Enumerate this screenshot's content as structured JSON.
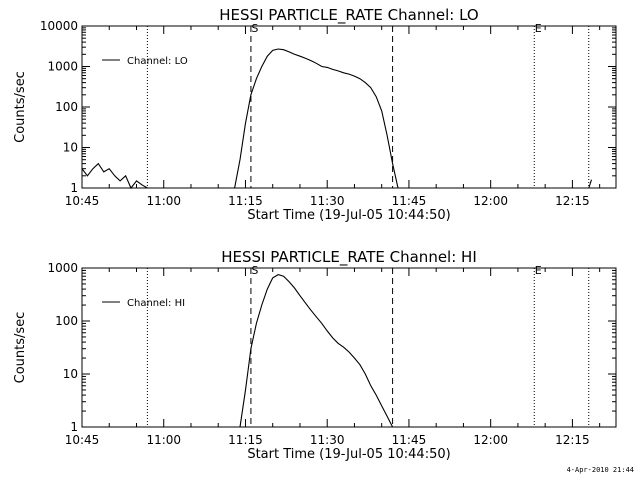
{
  "footer": {
    "timestamp": "4-Apr-2010 21:44"
  },
  "chart_data": [
    {
      "type": "line",
      "title": "HESSI PARTICLE_RATE Channel: LO",
      "xlabel": "Start Time (19-Jul-05 10:44:50)",
      "ylabel": "Counts/sec",
      "y_scale": "log",
      "xlim": [
        "10:45",
        "12:23"
      ],
      "ylim": [
        1,
        10000
      ],
      "x_ticks": [
        "10:45",
        "11:00",
        "11:15",
        "11:30",
        "11:45",
        "12:00",
        "12:15"
      ],
      "y_ticks": [
        "1",
        "10",
        "100",
        "1000",
        "10000"
      ],
      "legend": {
        "position": "top-left",
        "entries": [
          "Channel: LO"
        ]
      },
      "markers": [
        {
          "label": "S",
          "time": "11:16",
          "style": "dashed"
        },
        {
          "label": "",
          "time": "11:42",
          "style": "dashed"
        },
        {
          "label": "E",
          "time": "12:08",
          "style": "dotted"
        }
      ],
      "dotted_lines": [
        "10:57",
        "12:18"
      ],
      "series": [
        {
          "name": "Channel: LO",
          "x": [
            "10:45",
            "10:46",
            "10:47",
            "10:48",
            "10:49",
            "10:50",
            "10:51",
            "10:52",
            "10:53",
            "10:54",
            "10:55",
            "10:56",
            "10:57",
            "11:13",
            "11:14",
            "11:15",
            "11:16",
            "11:17",
            "11:18",
            "11:19",
            "11:20",
            "11:21",
            "11:22",
            "11:23",
            "11:24",
            "11:25",
            "11:26",
            "11:27",
            "11:28",
            "11:29",
            "11:30",
            "11:31",
            "11:32",
            "11:33",
            "11:34",
            "11:35",
            "11:36",
            "11:37",
            "11:38",
            "11:39",
            "11:40",
            "11:41",
            "11:42",
            "11:43",
            "12:18",
            "12:18.5"
          ],
          "y": [
            3,
            2,
            3,
            4,
            2.5,
            3,
            2,
            1.5,
            2,
            1,
            1.5,
            1.2,
            1,
            1,
            5,
            40,
            200,
            500,
            1000,
            1800,
            2500,
            2700,
            2600,
            2300,
            2000,
            1800,
            1600,
            1400,
            1200,
            1000,
            950,
            850,
            780,
            700,
            650,
            580,
            500,
            400,
            300,
            180,
            80,
            20,
            4,
            1,
            1,
            1.6
          ]
        }
      ]
    },
    {
      "type": "line",
      "title": "HESSI PARTICLE_RATE Channel: HI",
      "xlabel": "Start Time (19-Jul-05 10:44:50)",
      "ylabel": "Counts/sec",
      "y_scale": "log",
      "xlim": [
        "10:45",
        "12:23"
      ],
      "ylim": [
        1,
        1000
      ],
      "x_ticks": [
        "10:45",
        "11:00",
        "11:15",
        "11:30",
        "11:45",
        "12:00",
        "12:15"
      ],
      "y_ticks": [
        "1",
        "10",
        "100",
        "1000"
      ],
      "legend": {
        "position": "top-left",
        "entries": [
          "Channel: HI"
        ]
      },
      "markers": [
        {
          "label": "S",
          "time": "11:16",
          "style": "dashed"
        },
        {
          "label": "",
          "time": "11:42",
          "style": "dashed"
        },
        {
          "label": "E",
          "time": "12:08",
          "style": "dotted"
        }
      ],
      "dotted_lines": [
        "10:57",
        "12:18"
      ],
      "series": [
        {
          "name": "Channel: HI",
          "x": [
            "11:14",
            "11:15",
            "11:16",
            "11:17",
            "11:18",
            "11:19",
            "11:20",
            "11:21",
            "11:22",
            "11:23",
            "11:24",
            "11:25",
            "11:26",
            "11:27",
            "11:28",
            "11:29",
            "11:30",
            "11:31",
            "11:32",
            "11:33",
            "11:34",
            "11:35",
            "11:36",
            "11:37",
            "11:38",
            "11:39",
            "11:40",
            "11:41",
            "11:42"
          ],
          "y": [
            1,
            5,
            30,
            90,
            200,
            400,
            650,
            750,
            700,
            550,
            420,
            300,
            220,
            160,
            120,
            90,
            65,
            48,
            38,
            32,
            26,
            20,
            15,
            10,
            6,
            4,
            2.5,
            1.6,
            1
          ]
        }
      ]
    }
  ]
}
